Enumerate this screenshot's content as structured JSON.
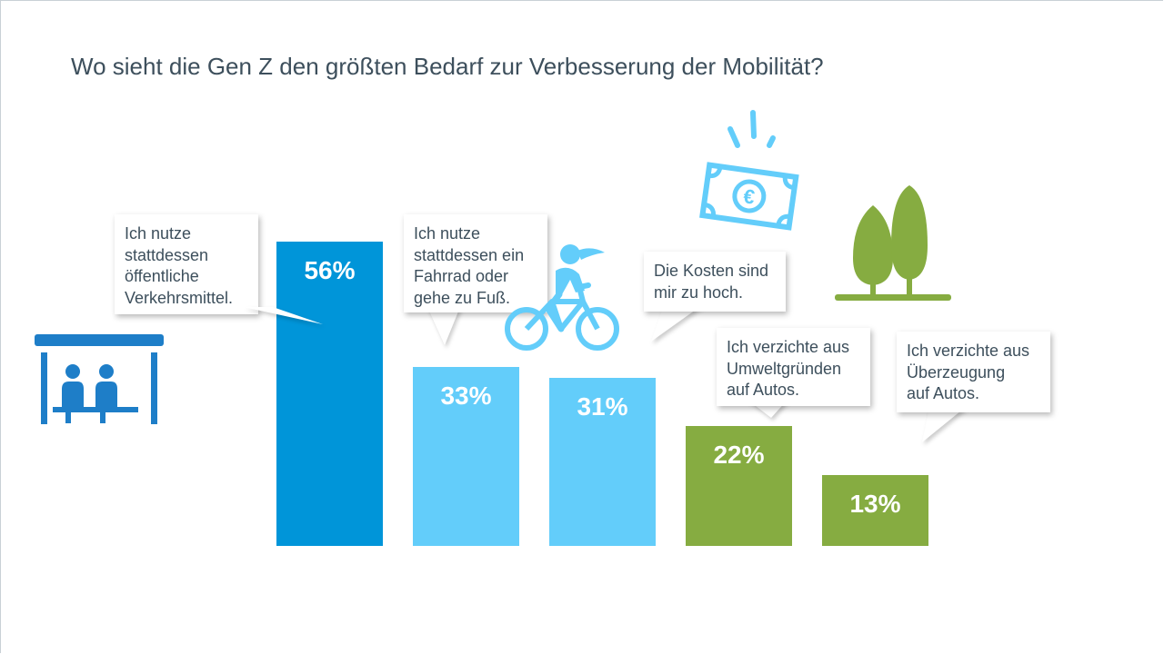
{
  "title": "Wo sieht die Gen Z den größten Bedarf zur Verbesserung der Mobilität?",
  "chart_data": {
    "type": "bar",
    "title": "Wo sieht die Gen Z den größten Bedarf zur Verbesserung der Mobilität?",
    "categories": [
      "Ich nutze stattdessen öffentliche Verkehrsmittel.",
      "Ich nutze stattdessen ein Fahrrad oder gehe zu Fuß.",
      "Die Kosten sind mir zu hoch.",
      "Ich verzichte aus Umweltgründen auf Autos.",
      "Ich verzichte aus Überzeugung auf Autos."
    ],
    "values": [
      56,
      33,
      31,
      22,
      13
    ],
    "value_labels": [
      "56%",
      "33%",
      "31%",
      "22%",
      "13%"
    ],
    "colors": [
      "#0095d9",
      "#63cdfa",
      "#63cdfa",
      "#86ac41",
      "#86ac41"
    ],
    "ylim": [
      0,
      56
    ],
    "grid": false,
    "legend": "none"
  },
  "callouts": [
    [
      "Ich nutze",
      "stattdessen",
      "öffentliche",
      "Verkehrsmittel."
    ],
    [
      "Ich nutze",
      "stattdessen ein",
      "Fahrrad oder",
      "gehe zu Fuß."
    ],
    [
      "Die Kosten sind",
      "mir zu hoch."
    ],
    [
      "Ich verzichte aus",
      "Umweltgründen",
      "auf Autos."
    ],
    [
      "Ich verzichte aus",
      "Überzeugung",
      "auf Autos."
    ]
  ],
  "icons": [
    "bus-stop-icon",
    "cyclist-icon",
    "euro-banknote-icon",
    "trees-icon"
  ]
}
